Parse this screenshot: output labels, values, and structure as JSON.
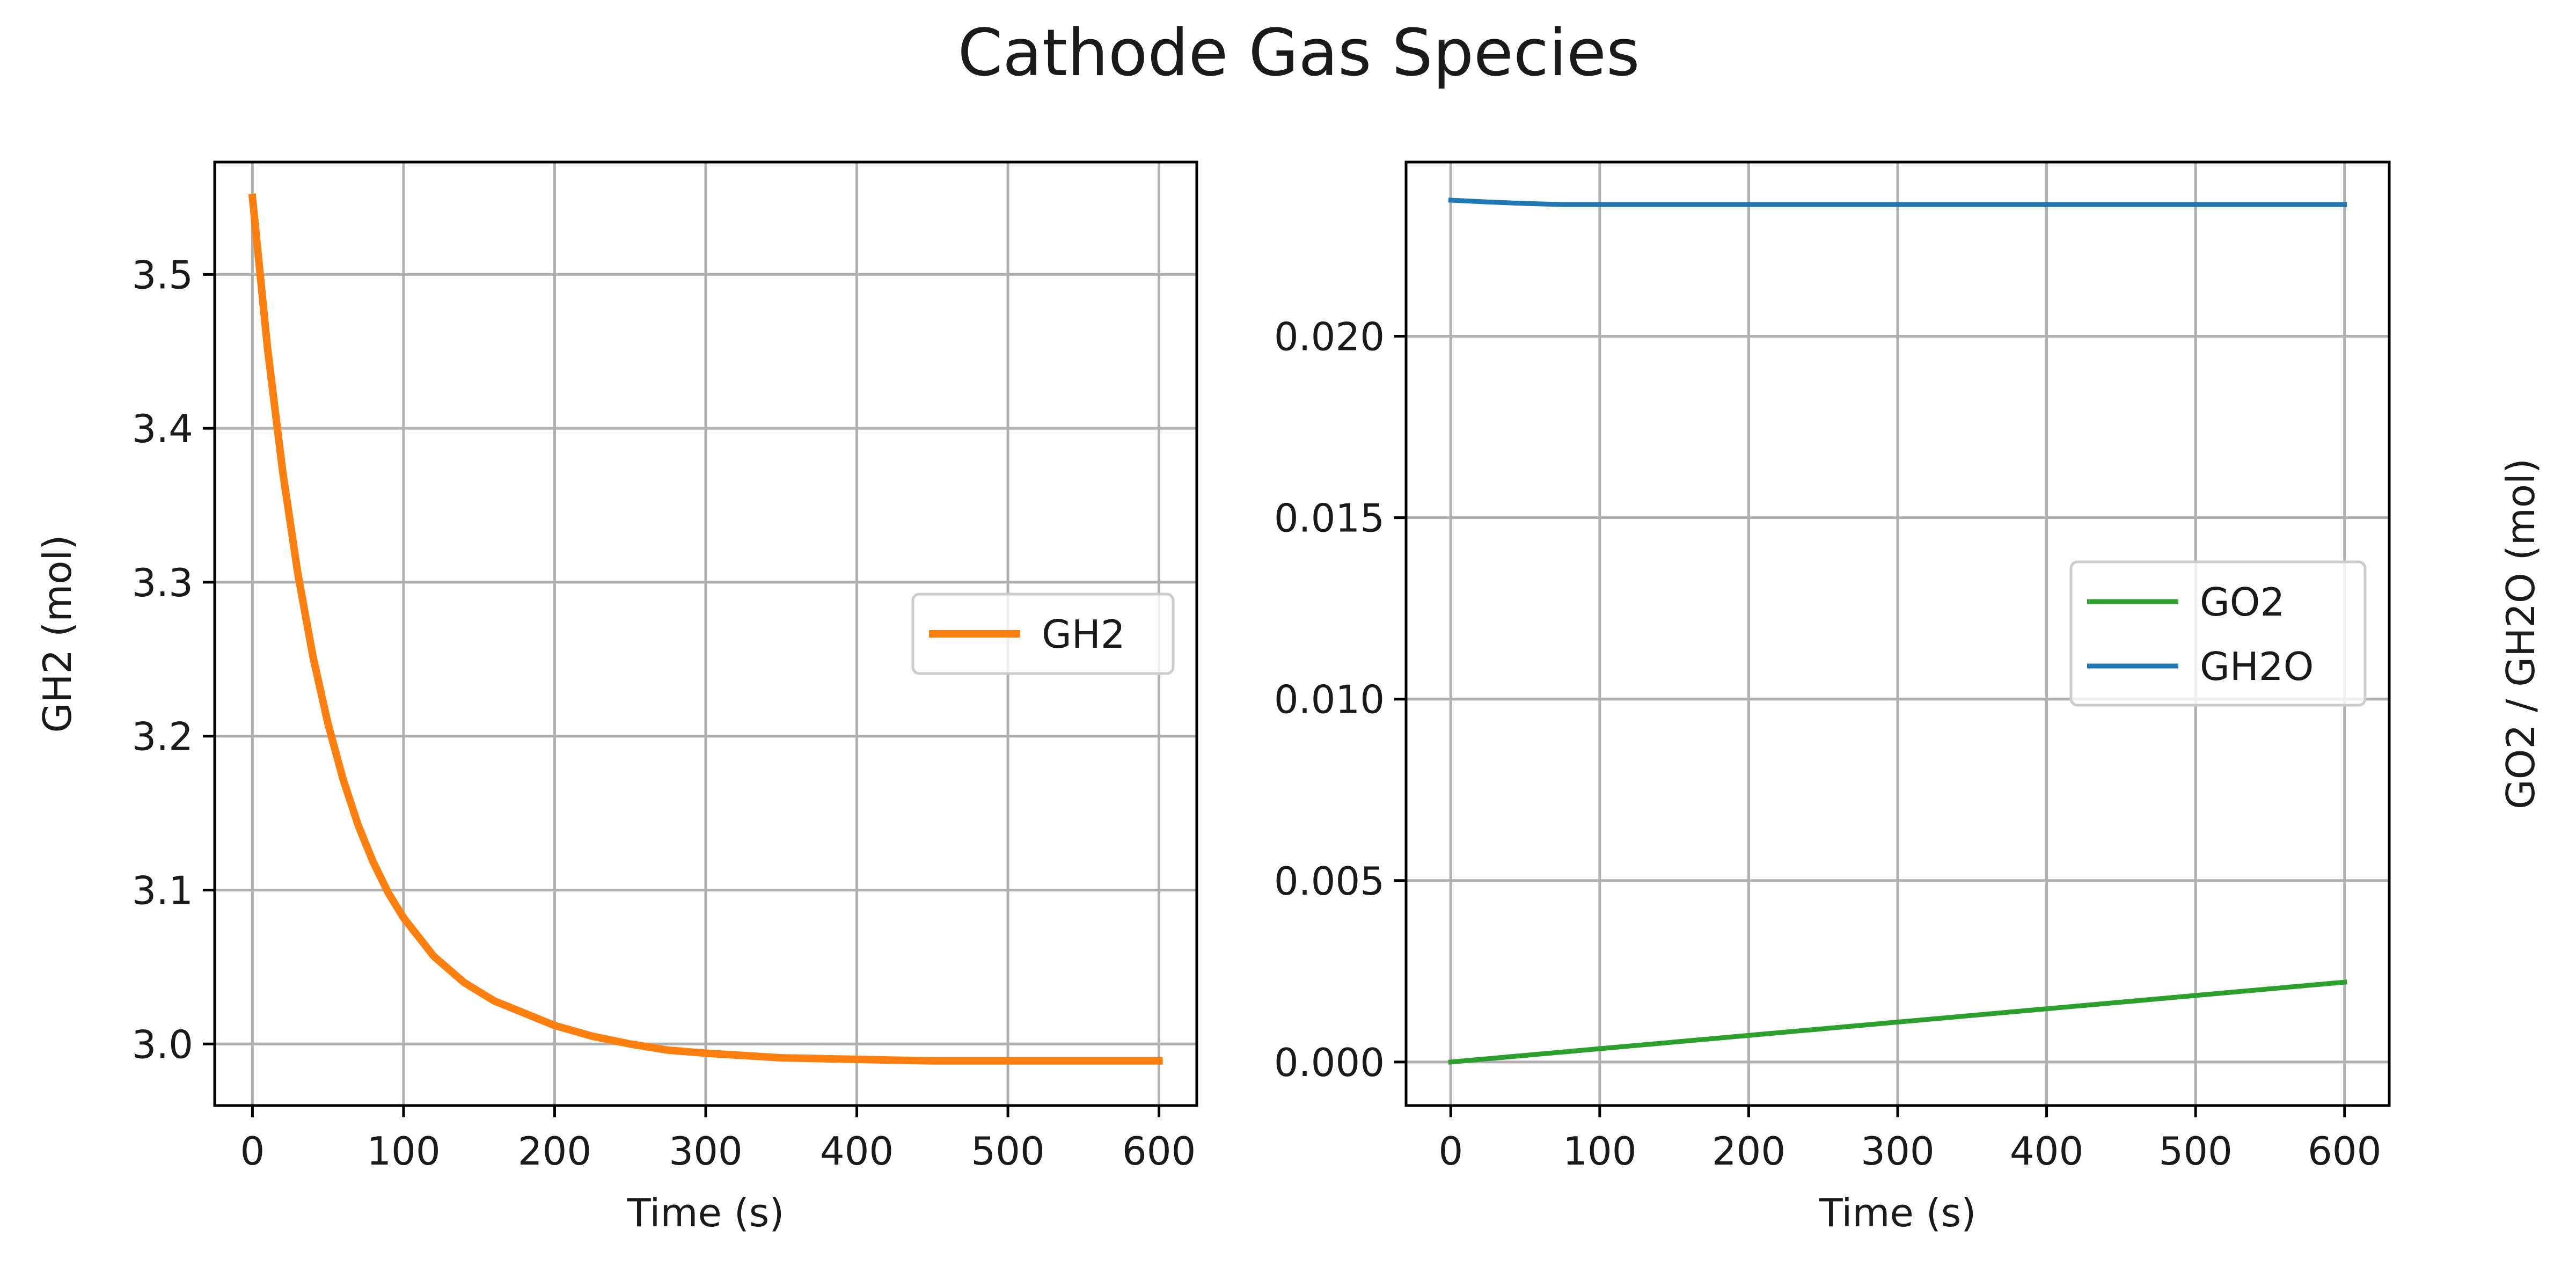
{
  "figure": {
    "title": "Cathode Gas Species"
  },
  "chart_data": [
    {
      "type": "line",
      "xlabel": "Time (s)",
      "ylabel": "GH2 (mol)",
      "xlim": [
        -25,
        625
      ],
      "ylim": [
        2.96,
        3.573
      ],
      "xticks": [
        0,
        100,
        200,
        300,
        400,
        500,
        600
      ],
      "yticks": [
        3.0,
        3.1,
        3.2,
        3.3,
        3.4,
        3.5
      ],
      "ytick_labels": [
        "3.0",
        "3.1",
        "3.2",
        "3.3",
        "3.4",
        "3.5"
      ],
      "grid": true,
      "legend_position": "center-right",
      "series": [
        {
          "name": "GH2",
          "color": "#ff7f0e",
          "x": [
            0,
            10,
            20,
            30,
            40,
            50,
            60,
            70,
            80,
            90,
            100,
            120,
            140,
            160,
            180,
            200,
            225,
            250,
            275,
            300,
            350,
            400,
            450,
            500,
            550,
            600
          ],
          "y": [
            3.55,
            3.452,
            3.372,
            3.306,
            3.252,
            3.208,
            3.172,
            3.142,
            3.118,
            3.098,
            3.082,
            3.057,
            3.04,
            3.028,
            3.02,
            3.012,
            3.005,
            3.0,
            2.996,
            2.994,
            2.991,
            2.99,
            2.989,
            2.989,
            2.989,
            2.989
          ]
        }
      ]
    },
    {
      "type": "line",
      "xlabel": "Time (s)",
      "ylabel": "GO2 / GH2O (mol)",
      "xlim": [
        -30,
        630
      ],
      "ylim": [
        -0.0012,
        0.0248
      ],
      "xticks": [
        0,
        100,
        200,
        300,
        400,
        500,
        600
      ],
      "yticks": [
        0.0,
        0.005,
        0.01,
        0.015,
        0.02
      ],
      "ytick_labels": [
        "0.000",
        "0.005",
        "0.010",
        "0.015",
        "0.020"
      ],
      "grid": true,
      "legend_position": "center-right",
      "series": [
        {
          "name": "GO2",
          "color": "#2ca02c",
          "x": [
            0,
            600
          ],
          "y": [
            0.0,
            0.0022
          ]
        },
        {
          "name": "GH2O",
          "color": "#1f77b4",
          "x": [
            0,
            25,
            50,
            75,
            100,
            200,
            300,
            400,
            500,
            600
          ],
          "y": [
            0.02375,
            0.0237,
            0.02366,
            0.02363,
            0.02363,
            0.02363,
            0.02363,
            0.02363,
            0.02363,
            0.02363
          ]
        }
      ]
    }
  ]
}
